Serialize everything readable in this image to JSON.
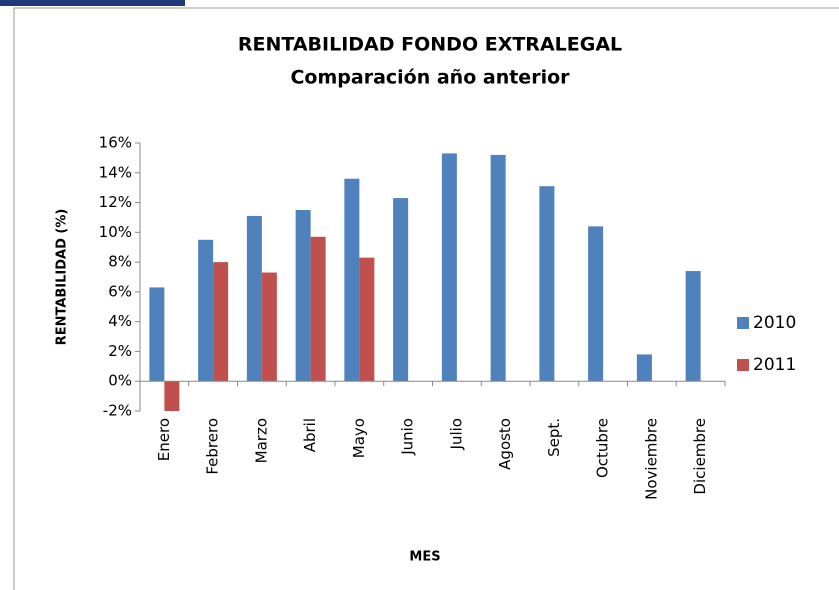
{
  "chart_data": {
    "type": "bar",
    "title": "RENTABILIDAD FONDO EXTRALEGAL",
    "subtitle": "Comparación  año anterior",
    "x_label": "MES",
    "y_label": "RENTABILIDAD (%)",
    "categories": [
      "Enero",
      "Febrero",
      "Marzo",
      "Abril",
      "Mayo",
      "Junio",
      "Julio",
      "Agosto",
      "Sept.",
      "Octubre",
      "Noviembre",
      "Diciembre"
    ],
    "series": [
      {
        "name": "2010",
        "color": "#4f81bd",
        "values": [
          6.3,
          9.5,
          11.1,
          11.5,
          13.6,
          12.3,
          15.3,
          15.2,
          13.1,
          10.4,
          1.8,
          7.4
        ]
      },
      {
        "name": "2011",
        "color": "#c0504d",
        "values": [
          -2.0,
          8.0,
          7.3,
          9.7,
          8.3,
          null,
          null,
          null,
          null,
          null,
          null,
          null
        ]
      }
    ],
    "ylim": [
      -2,
      16
    ],
    "yticks": [
      {
        "value": -2,
        "label": "-2%"
      },
      {
        "value": 0,
        "label": "0%"
      },
      {
        "value": 2,
        "label": "2%"
      },
      {
        "value": 4,
        "label": "4%"
      },
      {
        "value": 6,
        "label": "6%"
      },
      {
        "value": 8,
        "label": "8%"
      },
      {
        "value": 10,
        "label": "10%"
      },
      {
        "value": 12,
        "label": "12%"
      },
      {
        "value": 14,
        "label": "14%"
      },
      {
        "value": 16,
        "label": "16%"
      }
    ],
    "grid": false,
    "legend": "right"
  }
}
